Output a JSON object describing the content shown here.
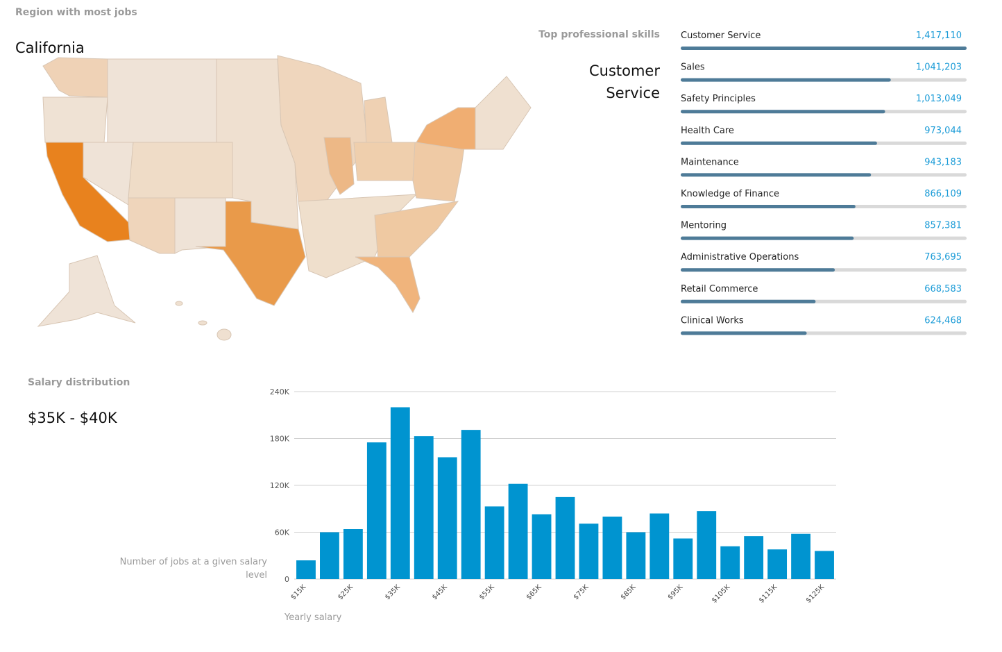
{
  "map_card": {
    "title": "Region with most jobs",
    "value": "California"
  },
  "skills_card": {
    "title": "Top professional skills",
    "value": "Customer Service"
  },
  "chart_data": [
    {
      "type": "hbar",
      "categories": [
        "Customer Service",
        "Sales",
        "Safety Principles",
        "Health Care",
        "Maintenance",
        "Knowledge of Finance",
        "Mentoring",
        "Administrative Operations",
        "Retail Commerce",
        "Clinical Works"
      ],
      "values": [
        1417110,
        1041203,
        1013049,
        973044,
        943183,
        866109,
        857381,
        763695,
        668583,
        624468
      ],
      "value_labels": [
        "1,417,110",
        "1,041,203",
        "1,013,049",
        "973,044",
        "943,183",
        "866,109",
        "857,381",
        "763,695",
        "668,583",
        "624,468"
      ],
      "xlim": [
        0,
        1417110
      ],
      "color": "#4e7b98",
      "track_color": "#d9d9d9",
      "label_color": "#1a9bd7"
    },
    {
      "type": "bar",
      "title": "Salary distribution",
      "subtitle": "$35K - $40K",
      "ylabel": "Number of jobs at a given salary level",
      "xlabel": "Yearly salary",
      "categories": [
        "$15K",
        null,
        "$25K",
        null,
        "$35K",
        null,
        "$45K",
        null,
        "$55K",
        null,
        "$65K",
        null,
        "$75K",
        null,
        "$85K",
        null,
        "$95K",
        null,
        "$105K",
        null,
        "$115K",
        null,
        "$125K"
      ],
      "values": [
        24000,
        60000,
        64000,
        175000,
        220000,
        183000,
        156000,
        191000,
        93000,
        122000,
        83000,
        105000,
        71000,
        80000,
        60000,
        84000,
        52000,
        87000,
        42000,
        55000,
        38000,
        58000,
        36000
      ],
      "ylim": [
        0,
        240000
      ],
      "yticks": [
        0,
        {
          "value": 60000,
          "label": "60K"
        },
        {
          "value": 120000,
          "label": "120K"
        },
        {
          "value": 180000,
          "label": "180K"
        },
        {
          "value": 240000,
          "label": "240K"
        }
      ],
      "grid": true,
      "color": "#0094d0"
    }
  ]
}
